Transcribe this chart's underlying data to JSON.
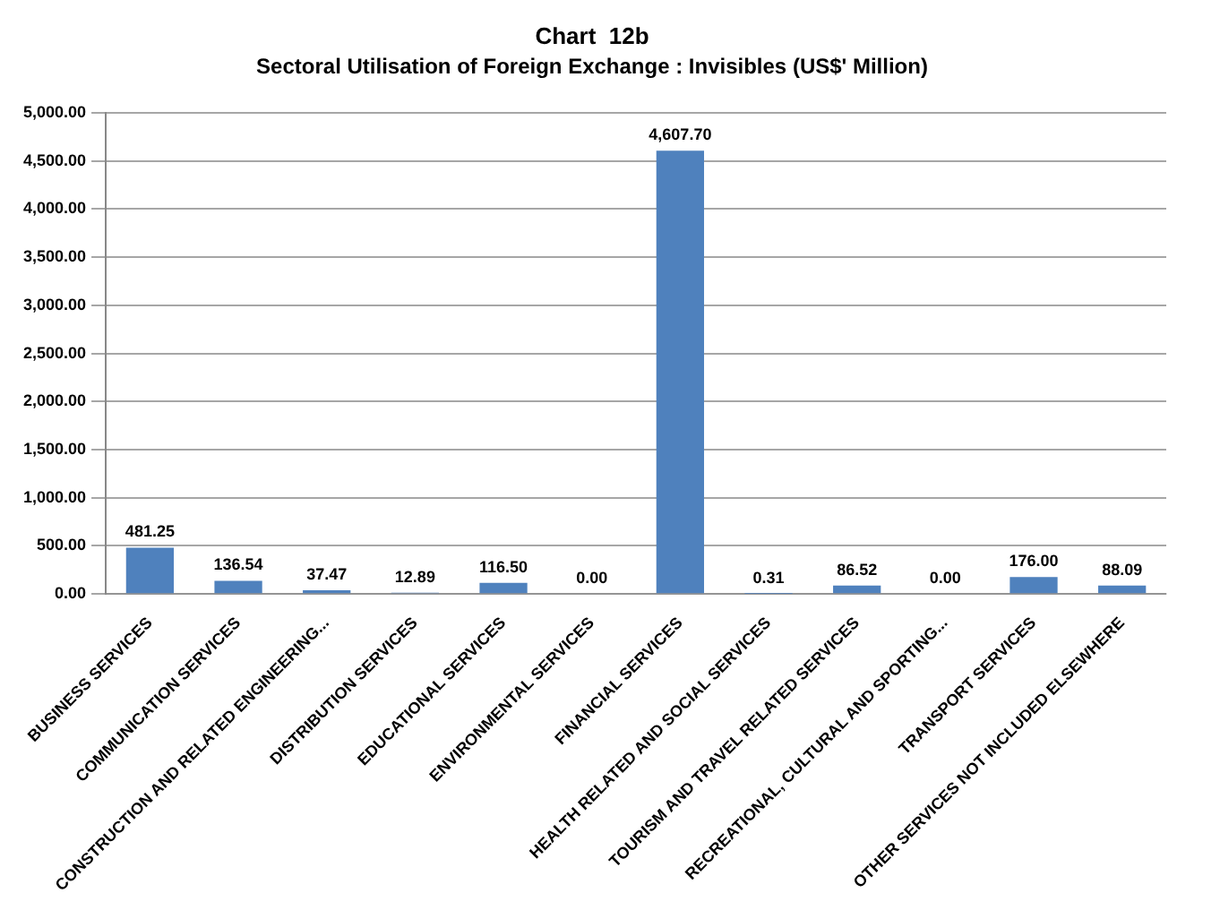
{
  "chart_data": {
    "type": "bar",
    "title": "Chart  12b",
    "subtitle": "Sectoral Utilisation of Foreign Exchange : Invisibles (US$' Million)",
    "categories": [
      "BUSINESS SERVICES",
      "COMMUNICATION SERVICES",
      "CONSTRUCTION AND RELATED ENGINEERING...",
      "DISTRIBUTION SERVICES",
      "EDUCATIONAL SERVICES",
      "ENVIRONMENTAL SERVICES",
      "FINANCIAL SERVICES",
      "HEALTH RELATED AND SOCIAL SERVICES",
      "TOURISM AND TRAVEL RELATED SERVICES",
      "RECREATIONAL, CULTURAL AND SPORTING...",
      "TRANSPORT SERVICES",
      "OTHER SERVICES NOT INCLUDED ELSEWHERE"
    ],
    "values": [
      481.25,
      136.54,
      37.47,
      12.89,
      116.5,
      0,
      4607.7,
      0.31,
      86.52,
      0,
      176,
      88.09
    ],
    "value_labels": [
      "481.25",
      "136.54",
      "37.47",
      "12.89",
      "116.50",
      "0.00",
      "4,607.70",
      "0.31",
      "86.52",
      "0.00",
      "176.00",
      "88.09"
    ],
    "color": "#4f81bd",
    "ylim": [
      0,
      5000
    ],
    "yticks": [
      {
        "value": 0,
        "label": "0.00"
      },
      {
        "value": 500,
        "label": "500.00"
      },
      {
        "value": 1000,
        "label": "1,000.00"
      },
      {
        "value": 1500,
        "label": "1,500.00"
      },
      {
        "value": 2000,
        "label": "2,000.00"
      },
      {
        "value": 2500,
        "label": "2,500.00"
      },
      {
        "value": 3000,
        "label": "3,000.00"
      },
      {
        "value": 3500,
        "label": "3,500.00"
      },
      {
        "value": 4000,
        "label": "4,000.00"
      },
      {
        "value": 4500,
        "label": "4,500.00"
      },
      {
        "value": 5000,
        "label": "5,000.00"
      }
    ],
    "grid": "y"
  }
}
